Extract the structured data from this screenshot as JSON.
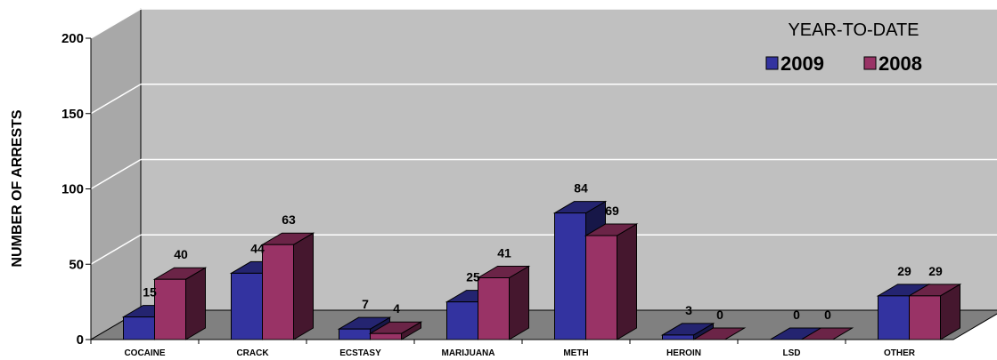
{
  "chart_data": {
    "type": "bar",
    "title": "",
    "xlabel": "",
    "ylabel": "NUMBER OF ARRESTS",
    "ylim": [
      0,
      200
    ],
    "yticks": [
      "0",
      "50",
      "100",
      "150",
      "200"
    ],
    "grid": true,
    "legend_placement": "top-right",
    "legend_title": "YEAR-TO-DATE",
    "categories": [
      "COCAINE",
      "CRACK",
      "ECSTASY",
      "MARIJUANA",
      "METH",
      "HEROIN",
      "LSD",
      "OTHER"
    ],
    "series": [
      {
        "name": "2009",
        "values": [
          15,
          44,
          7,
          25,
          84,
          3,
          0,
          29
        ],
        "color": "#3333A0"
      },
      {
        "name": "2008",
        "values": [
          40,
          63,
          4,
          41,
          69,
          0,
          0,
          29
        ],
        "color": "#993366"
      }
    ]
  },
  "colors": {
    "back_wall": "#C0C0C0",
    "floor": "#808080",
    "side_wall": "#A8A8A8",
    "gridline": "#FFFFFF"
  }
}
